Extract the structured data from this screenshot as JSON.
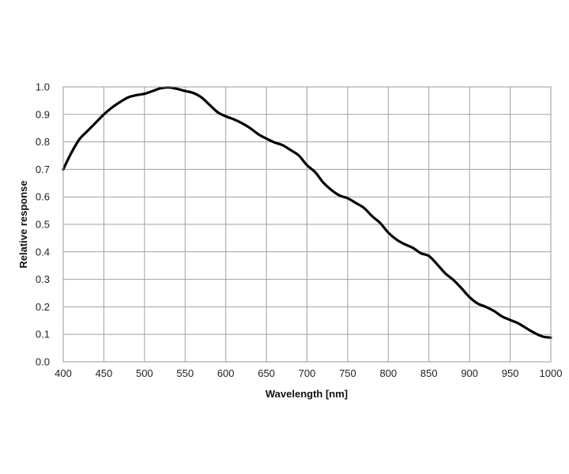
{
  "chart_data": {
    "type": "line",
    "title": "",
    "xlabel": "Wavelength [nm]",
    "ylabel": "Relative response",
    "xlim": [
      400,
      1000
    ],
    "ylim": [
      0.0,
      1.0
    ],
    "x_ticks": [
      "400",
      "450",
      "500",
      "550",
      "600",
      "650",
      "700",
      "750",
      "800",
      "850",
      "900",
      "950",
      "1000"
    ],
    "y_ticks": [
      "0.0",
      "0.1",
      "0.2",
      "0.3",
      "0.4",
      "0.5",
      "0.6",
      "0.7",
      "0.8",
      "0.9",
      "1.0"
    ],
    "grid": true,
    "legend": "none",
    "colors": {
      "line": "#000000",
      "grid": "#a0a0a0"
    },
    "series": [
      {
        "x": [
          400,
          410,
          420,
          430,
          440,
          450,
          460,
          470,
          480,
          490,
          500,
          510,
          520,
          530,
          540,
          550,
          560,
          570,
          580,
          590,
          600,
          610,
          620,
          630,
          640,
          650,
          660,
          670,
          680,
          690,
          700,
          710,
          720,
          730,
          740,
          750,
          760,
          770,
          780,
          790,
          800,
          810,
          820,
          830,
          840,
          850,
          860,
          870,
          880,
          890,
          900,
          910,
          920,
          930,
          940,
          950,
          960,
          970,
          980,
          990,
          1000
        ],
        "y": [
          0.7,
          0.76,
          0.81,
          0.84,
          0.87,
          0.9,
          0.925,
          0.945,
          0.962,
          0.97,
          0.975,
          0.985,
          0.995,
          0.998,
          0.993,
          0.985,
          0.978,
          0.962,
          0.935,
          0.908,
          0.893,
          0.882,
          0.868,
          0.85,
          0.828,
          0.812,
          0.798,
          0.788,
          0.77,
          0.75,
          0.715,
          0.69,
          0.652,
          0.625,
          0.605,
          0.595,
          0.578,
          0.56,
          0.53,
          0.505,
          0.47,
          0.445,
          0.428,
          0.415,
          0.395,
          0.385,
          0.355,
          0.322,
          0.298,
          0.268,
          0.235,
          0.212,
          0.2,
          0.185,
          0.165,
          0.152,
          0.14,
          0.122,
          0.105,
          0.092,
          0.088
        ]
      }
    ]
  }
}
